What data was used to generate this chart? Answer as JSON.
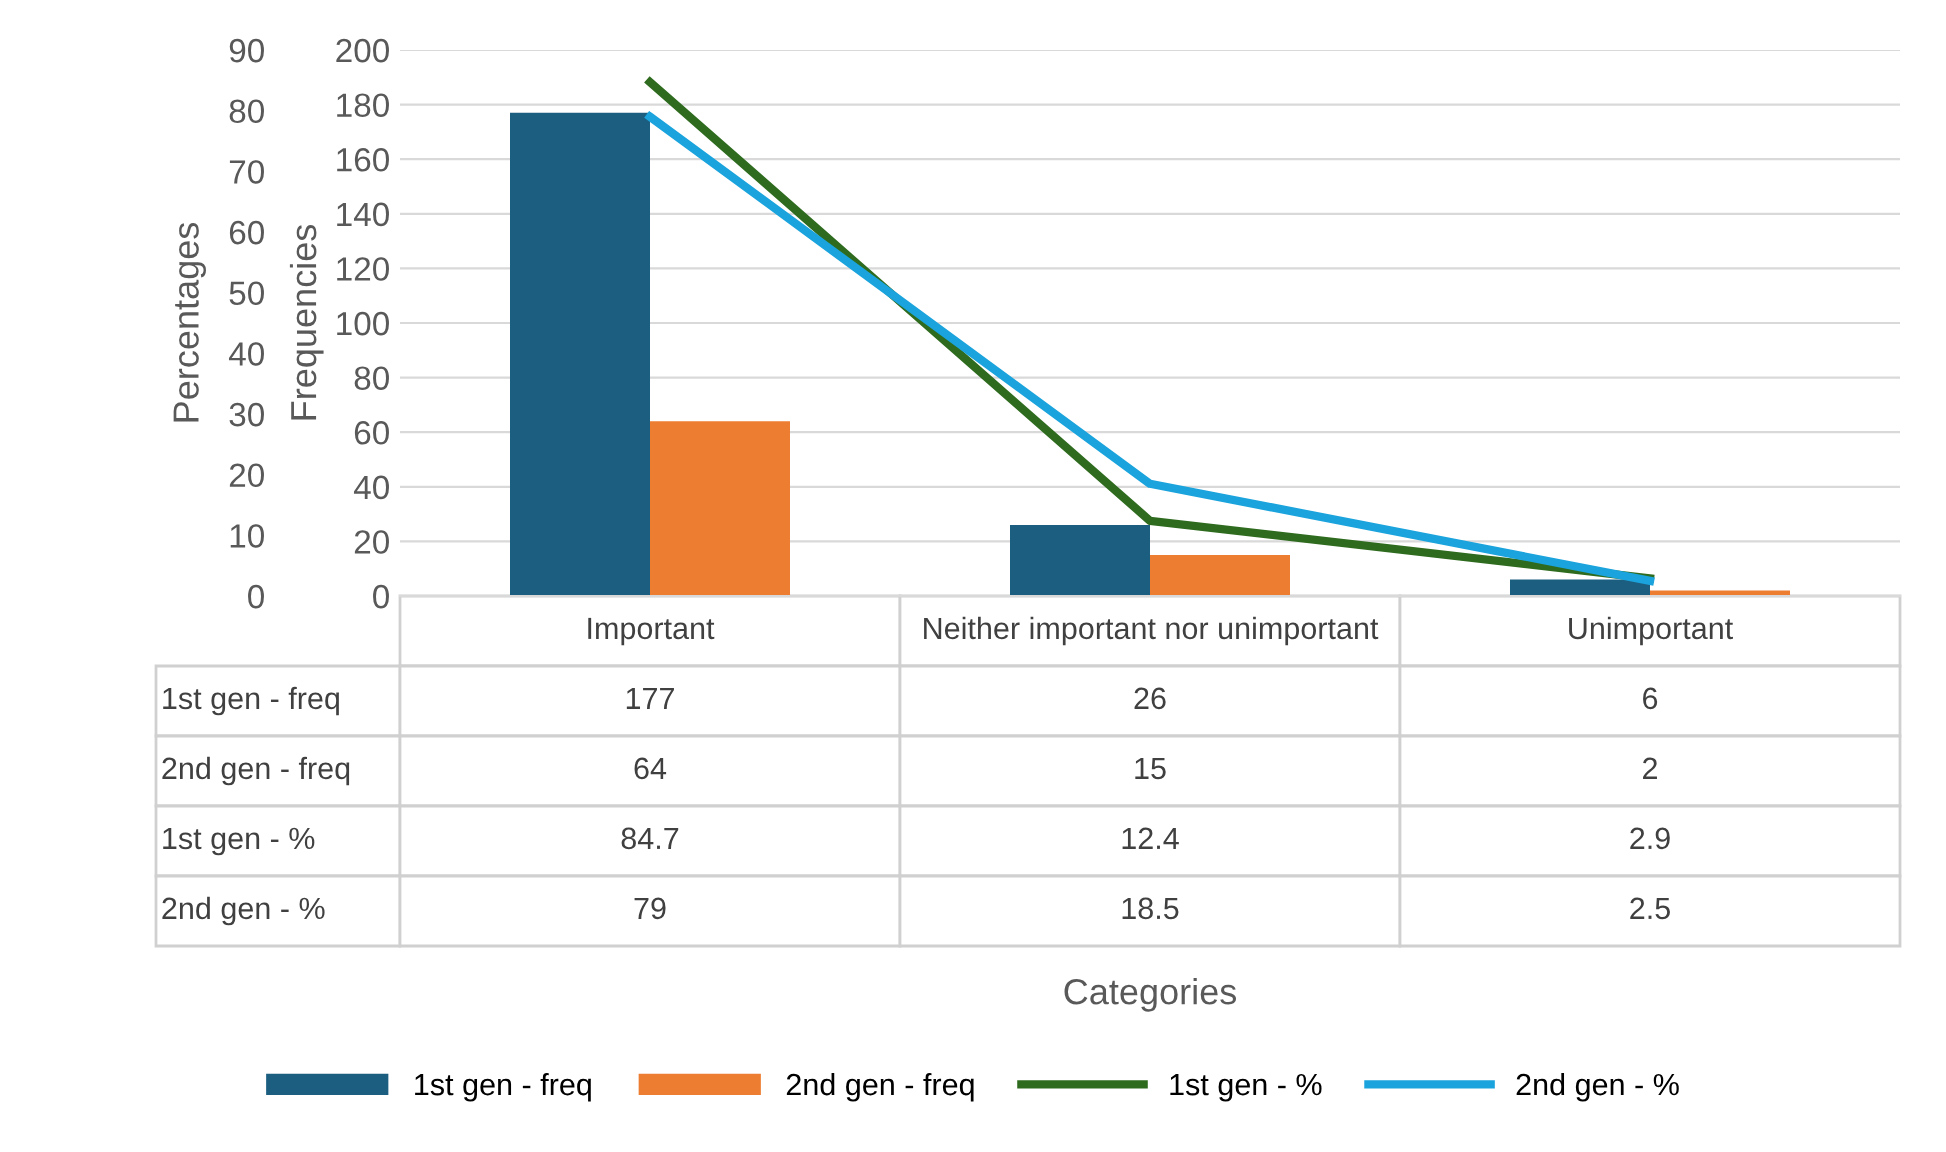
{
  "chart_data": {
    "type": "bar",
    "annotations": [
      "Categories"
    ],
    "ylabel": "Frequencies",
    "y2label": "Percentages",
    "categories": [
      "Important",
      "Neither important nor unimportant",
      "Unimportant"
    ],
    "series": [
      {
        "name": "1st gen - freq",
        "color": "#1b5e80",
        "values": [
          177,
          26,
          6
        ]
      },
      {
        "name": "2nd gen - freq",
        "color": "#ed7d31",
        "values": [
          64,
          15,
          2
        ]
      },
      {
        "name": "1st gen - %",
        "type": "line",
        "axis": "y2",
        "color": "#2e6b1e",
        "values": [
          84.7,
          12.4,
          2.9
        ]
      },
      {
        "name": "2nd gen - %",
        "type": "line",
        "axis": "y2",
        "color": "#1aa3dc",
        "values": [
          79,
          18.5,
          2.5
        ]
      }
    ],
    "ylim": [
      0,
      200
    ],
    "yticks": [
      0,
      20,
      40,
      60,
      80,
      100,
      120,
      140,
      160,
      180,
      200
    ],
    "y2lim": [
      0,
      90
    ],
    "y2ticks": [
      0,
      10,
      20,
      30,
      40,
      50,
      60,
      70,
      80,
      90
    ],
    "grid": "y",
    "legend": "bottom",
    "data_labels": true,
    "marker": "none",
    "line_style": "solid"
  }
}
